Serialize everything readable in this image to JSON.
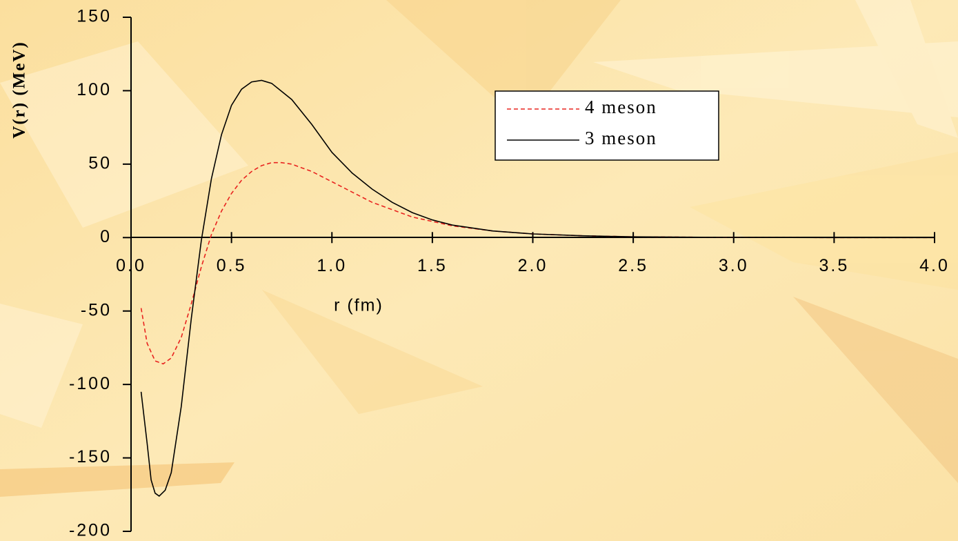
{
  "chart_data": {
    "type": "line",
    "x_label": "r (fm)",
    "y_label": "V(r) (MeV)",
    "xlim": [
      0,
      4
    ],
    "ylim": [
      -200,
      150
    ],
    "xticks": [
      {
        "value": 0,
        "label": "0.0"
      },
      0.5,
      {
        "value": 1,
        "label": "1.0"
      },
      1.5,
      {
        "value": 2,
        "label": "2.0"
      },
      2.5,
      {
        "value": 3,
        "label": "3.0"
      },
      3.5,
      {
        "value": 4,
        "label": "4.0"
      }
    ],
    "yticks": [
      150,
      100,
      50,
      0,
      -50,
      -100,
      -150,
      -200
    ],
    "legend": "upper right",
    "series": [
      {
        "name": "4 meson",
        "color": "#e8231f",
        "dash": true,
        "x": [
          0.05,
          0.08,
          0.12,
          0.16,
          0.2,
          0.25,
          0.3,
          0.35,
          0.4,
          0.45,
          0.5,
          0.55,
          0.6,
          0.65,
          0.7,
          0.75,
          0.8,
          0.9,
          1.0,
          1.1,
          1.2,
          1.3,
          1.4,
          1.5,
          1.6,
          1.8,
          2.0,
          2.25,
          2.5,
          3.0,
          3.5,
          4.0
        ],
        "values": [
          -48,
          -72,
          -84,
          -86,
          -82,
          -68,
          -45,
          -20,
          2,
          18,
          30,
          39,
          45,
          49,
          51,
          51,
          50,
          45,
          38,
          31,
          24,
          19,
          14,
          11,
          8,
          4.5,
          2.5,
          1.2,
          0.5,
          0.1,
          0,
          0
        ]
      },
      {
        "name": "3 meson",
        "color": "#000000",
        "dash": false,
        "x": [
          0.05,
          0.08,
          0.1,
          0.12,
          0.14,
          0.17,
          0.2,
          0.25,
          0.3,
          0.35,
          0.4,
          0.45,
          0.5,
          0.55,
          0.6,
          0.65,
          0.7,
          0.8,
          0.9,
          1.0,
          1.1,
          1.2,
          1.3,
          1.4,
          1.5,
          1.6,
          1.8,
          2.0,
          2.25,
          2.5,
          3.0,
          3.5,
          4.0
        ],
        "values": [
          -105,
          -140,
          -165,
          -174,
          -176,
          -172,
          -160,
          -115,
          -55,
          -2,
          40,
          70,
          90,
          101,
          106,
          107,
          105,
          94,
          77,
          58,
          44,
          33,
          24,
          17,
          12,
          8.5,
          4.5,
          2.5,
          1.2,
          0.5,
          0.1,
          0,
          0
        ]
      }
    ]
  }
}
